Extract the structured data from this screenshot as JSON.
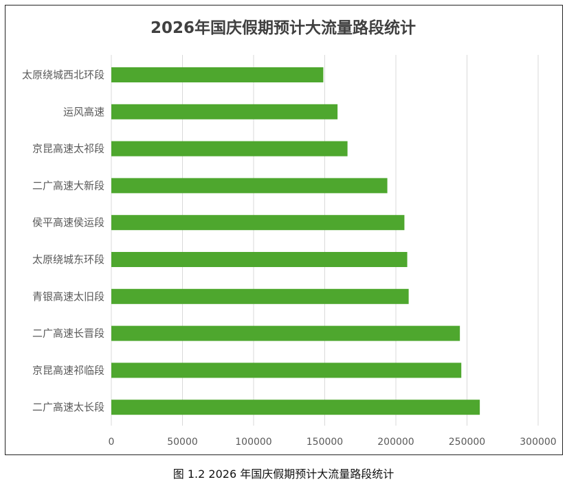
{
  "caption": "图 1.2 2026 年国庆假期预计大流量路段统计",
  "colors": {
    "bar": "#4ea72e",
    "grid": "#d9d9d9",
    "axis_text": "#595959",
    "title_text": "#404040"
  },
  "chart_data": {
    "type": "bar",
    "orientation": "horizontal",
    "title": "2026年国庆假期预计大流量路段统计",
    "xlabel": "",
    "ylabel": "",
    "categories": [
      "太原绕城西北环段",
      "运风高速",
      "京昆高速太祁段",
      "二广高速大新段",
      "侯平高速侯运段",
      "太原绕城东环段",
      "青银高速太旧段",
      "二广高速长晋段",
      "京昆高速祁临段",
      "二广高速太长段"
    ],
    "values": [
      149000,
      159000,
      166000,
      194000,
      206000,
      208000,
      209000,
      245000,
      246000,
      259000
    ],
    "xlim": [
      0,
      300000
    ],
    "xticks": [
      "0",
      "50000",
      "100000",
      "150000",
      "200000",
      "250000",
      "300000"
    ],
    "grid": true,
    "legend": "none"
  }
}
